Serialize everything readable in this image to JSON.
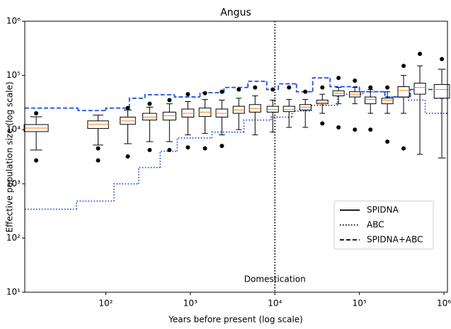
{
  "chart_data": {
    "type": "boxplot",
    "title": "Angus",
    "xlabel": "Years before present (log scale)",
    "ylabel": "Effective population size (log scale)",
    "xscale": "log",
    "yscale": "log",
    "xlim": [
      11,
      1100000
    ],
    "ylim": [
      10,
      1000000
    ],
    "xticks": [
      {
        "value": 100,
        "label": "10²"
      },
      {
        "value": 1000,
        "label": "10³"
      },
      {
        "value": 10000,
        "label": "10⁴"
      },
      {
        "value": 100000,
        "label": "10⁵"
      },
      {
        "value": 1000000,
        "label": "10⁶"
      }
    ],
    "yticks": [
      {
        "value": 10,
        "label": "10¹"
      },
      {
        "value": 100,
        "label": "10²"
      },
      {
        "value": 1000,
        "label": "10³"
      },
      {
        "value": 10000,
        "label": "10⁴"
      },
      {
        "value": 100000,
        "label": "10⁵"
      },
      {
        "value": 1000000,
        "label": "10⁶"
      }
    ],
    "boxes": {
      "name": "SPIDNA",
      "color": "#000000",
      "median_color": "#ff7f0e",
      "x": [
        15,
        81,
        182,
        330,
        566,
        935,
        1490,
        2360,
        3740,
        5830,
        9440,
        14700,
        22900,
        36400,
        56600,
        88300,
        135000,
        214000,
        333000,
        519000,
        944000
      ],
      "whislo": [
        4200,
        5200,
        5500,
        6000,
        6000,
        8000,
        8500,
        8000,
        10000,
        8000,
        9000,
        11000,
        11000,
        20000,
        30000,
        30000,
        20000,
        20000,
        20000,
        3500,
        3000
      ],
      "q1": [
        9200,
        10500,
        12500,
        15000,
        15000,
        17000,
        17500,
        17000,
        20000,
        21000,
        21000,
        21500,
        23000,
        30000,
        42000,
        40000,
        30000,
        30000,
        40000,
        45000,
        38000
      ],
      "median": [
        10700,
        12500,
        14500,
        17000,
        18000,
        20000,
        21000,
        20000,
        23000,
        24500,
        23500,
        23500,
        26000,
        32000,
        47000,
        45000,
        36000,
        35000,
        53000,
        60000,
        55000
      ],
      "q3": [
        12400,
        14500,
        17000,
        20000,
        21000,
        24000,
        25000,
        24000,
        27000,
        29000,
        27000,
        27000,
        29000,
        35000,
        52000,
        50000,
        40000,
        38000,
        62000,
        72000,
        68000
      ],
      "whishi": [
        17300,
        18500,
        23000,
        26000,
        30000,
        33000,
        36000,
        35000,
        38000,
        42000,
        35000,
        36000,
        36000,
        45000,
        60000,
        60000,
        55000,
        50000,
        100000,
        150000,
        130000
      ],
      "fliers": [
        [
          2700,
          20000
        ],
        [
          2700,
          4500
        ],
        [
          3200,
          25000
        ],
        [
          4200,
          30000
        ],
        [
          4200,
          35000
        ],
        [
          4700,
          45000
        ],
        [
          4500,
          47000
        ],
        [
          5000,
          50000
        ],
        [
          55000
        ],
        [
          60000
        ],
        [
          55000
        ],
        [
          60000
        ],
        [
          50000
        ],
        [
          13000,
          60000
        ],
        [
          11000,
          90000
        ],
        [
          10000,
          80000
        ],
        [
          10000,
          60000
        ],
        [
          6000,
          60000
        ],
        [
          4500,
          150000
        ],
        [
          250000
        ],
        [
          200000
        ]
      ]
    },
    "lines": [
      {
        "name": "ABC",
        "color": "#1f4fe0",
        "linestyle": "dotted",
        "x": [
          11,
          45,
          125,
          245,
          440,
          700,
          1800,
          4300,
          9000,
          16000,
          27000,
          55000,
          110000,
          200000,
          380000,
          600000
        ],
        "values": [
          340,
          480,
          1000,
          2000,
          4000,
          7000,
          9000,
          15000,
          17000,
          22000,
          28000,
          45000,
          50000,
          40000,
          35000,
          20000
        ]
      },
      {
        "name": "SPIDNA+ABC",
        "color": "#1f4fe0",
        "linestyle": "dashed",
        "x": [
          11,
          47,
          100,
          190,
          290,
          650,
          1300,
          2500,
          4800,
          8000,
          11000,
          18000,
          28000,
          45000,
          100000,
          200000,
          400000,
          800000
        ],
        "values": [
          25000,
          22500,
          25000,
          38000,
          44000,
          40000,
          48000,
          60000,
          78000,
          55000,
          70000,
          50000,
          90000,
          62000,
          50000,
          40000,
          55000,
          38000
        ]
      }
    ],
    "annotation": {
      "x": 10000,
      "text": "Domestication"
    },
    "legend": "lower right"
  }
}
